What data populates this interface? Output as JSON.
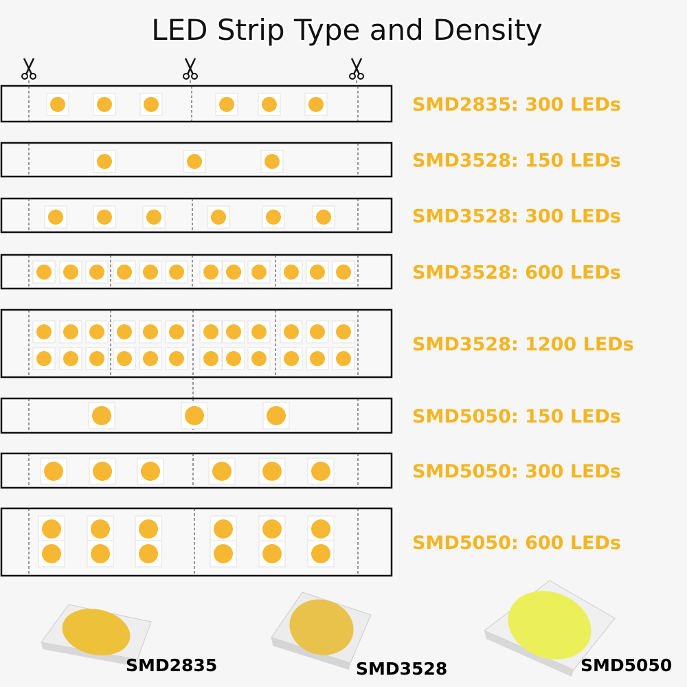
{
  "title": "LED Strip Type and Density",
  "strips": [
    {
      "label": "SMD2835: 300 LEDs"
    },
    {
      "label": "SMD3528: 150 LEDs"
    },
    {
      "label": "SMD3528: 300 LEDs"
    },
    {
      "label": "SMD3528: 600 LEDs"
    },
    {
      "label": "SMD3528: 1200 LEDs"
    },
    {
      "label": "SMD5050: 150 LEDs"
    },
    {
      "label": "SMD5050: 300 LEDs"
    },
    {
      "label": "SMD5050: 600 LEDs"
    }
  ],
  "chips": [
    {
      "label": "SMD2835"
    },
    {
      "label": "SMD3528"
    },
    {
      "label": "SMD5050"
    }
  ]
}
